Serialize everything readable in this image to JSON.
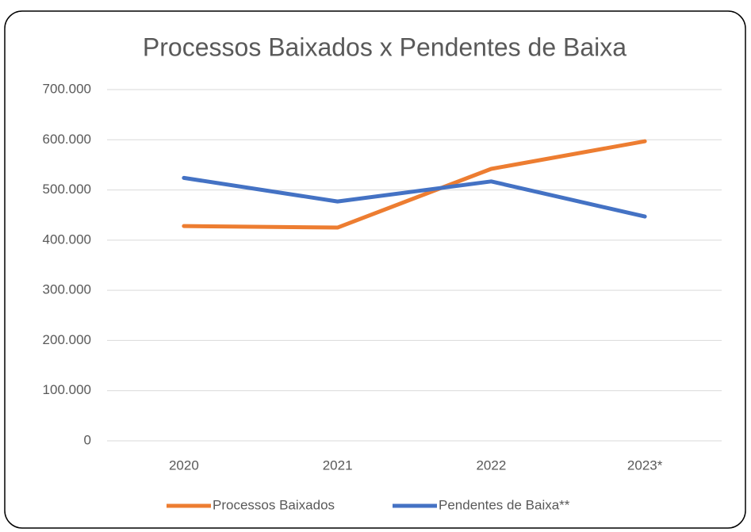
{
  "chart_data": {
    "type": "line",
    "title": "Processos Baixados x Pendentes de Baixa",
    "categories": [
      "2020",
      "2021",
      "2022",
      "2023*"
    ],
    "series": [
      {
        "name": "Processos Baixados",
        "color": "#ed7d31",
        "values": [
          428000,
          425000,
          542000,
          597000
        ]
      },
      {
        "name": "Pendentes de Baixa**",
        "color": "#4472c4",
        "values": [
          524000,
          477000,
          517000,
          447000
        ]
      }
    ],
    "ylim": [
      0,
      700000
    ],
    "yticks": [
      0,
      {
        "value": 100000,
        "label": "100.000"
      },
      {
        "value": 200000,
        "label": "200.000"
      },
      {
        "value": 300000,
        "label": "300.000"
      },
      {
        "value": 400000,
        "label": "400.000"
      },
      {
        "value": 500000,
        "label": "500.000"
      },
      {
        "value": 600000,
        "label": "600.000"
      },
      {
        "value": 700000,
        "label": "700.000"
      }
    ],
    "grid": true,
    "legend": "bottom"
  }
}
